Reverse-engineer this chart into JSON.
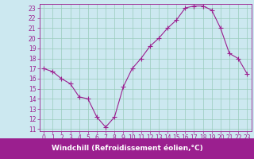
{
  "xlabel": "Windchill (Refroidissement éolien,°C)",
  "x": [
    0,
    1,
    2,
    3,
    4,
    5,
    6,
    7,
    8,
    9,
    10,
    11,
    12,
    13,
    14,
    15,
    16,
    17,
    18,
    19,
    20,
    21,
    22,
    23
  ],
  "y": [
    17.0,
    16.7,
    16.0,
    15.5,
    14.2,
    14.0,
    12.2,
    11.2,
    12.2,
    15.2,
    17.0,
    18.0,
    19.2,
    20.0,
    21.0,
    21.8,
    23.0,
    23.2,
    23.2,
    22.8,
    21.0,
    18.5,
    18.0,
    16.5
  ],
  "line_color": "#9b1f8f",
  "marker": "+",
  "marker_size": 4,
  "bg_color": "#cce8f0",
  "grid_color": "#99ccbb",
  "xlim": [
    -0.5,
    23.5
  ],
  "ylim": [
    10.8,
    23.4
  ],
  "yticks": [
    11,
    12,
    13,
    14,
    15,
    16,
    17,
    18,
    19,
    20,
    21,
    22,
    23
  ],
  "xticks": [
    0,
    1,
    2,
    3,
    4,
    5,
    6,
    7,
    8,
    9,
    10,
    11,
    12,
    13,
    14,
    15,
    16,
    17,
    18,
    19,
    20,
    21,
    22,
    23
  ],
  "tick_fontsize": 5.5,
  "label_fontsize": 6.5,
  "label_color": "#9b1f8f",
  "spine_color": "#9b1f8f",
  "bottom_bg": "#9b1f8f",
  "label_text_color": "#ffffff"
}
